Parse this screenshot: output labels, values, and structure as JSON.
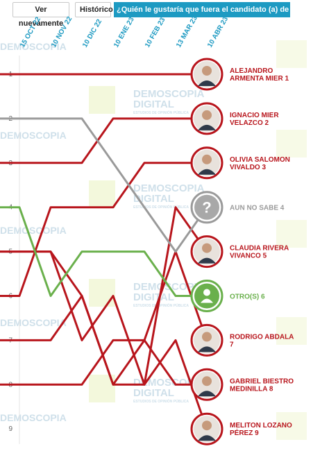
{
  "toolbar": {
    "again_label": "Ver nuevamente",
    "history_label": "Histórico",
    "question": "¿Quién le gustaría que fuera el candidato (a) de MORENA?"
  },
  "watermark": {
    "brand": "DEMOSCOPIA",
    "brand2": "DIGITAL",
    "tagline": "ESTUDIOS DE OPINIÓN PÚBLICA"
  },
  "chart_data": {
    "type": "line",
    "subtype": "bump",
    "dates": [
      "15 OCT 22",
      "10 NOV 22",
      "10 DIC 22",
      "10 ENE 23",
      "10 FEB 23",
      "13 MAR 23",
      "10 ABR 23"
    ],
    "ranks": [
      1,
      2,
      3,
      4,
      5,
      6,
      7,
      8,
      9
    ],
    "y_inverted": true,
    "grid": false,
    "colors": {
      "candidate": "#b8151c",
      "undecided": "#9a9a9a",
      "other": "#6ab04c"
    },
    "series": [
      {
        "name": "ALEJANDRO ARMENTA MIER 1",
        "line1": "ALEJANDRO",
        "line2": "ARMENTA MIER 1",
        "kind": "candidate",
        "ranks": [
          1,
          1,
          1,
          1,
          1,
          1,
          1
        ]
      },
      {
        "name": "IGNACIO MIER VELAZCO 2",
        "line1": "IGNACIO MIER",
        "line2": "VELAZCO 2",
        "kind": "candidate",
        "ranks": [
          3,
          3,
          3,
          2,
          2,
          2,
          2
        ]
      },
      {
        "name": "OLIVIA SALOMON VIVALDO 3",
        "line1": "OLIVIA SALOMON",
        "line2": "VIVALDO 3",
        "kind": "candidate",
        "ranks": [
          6,
          4,
          4,
          4,
          3,
          3,
          3
        ]
      },
      {
        "name": "AUN NO SABE 4",
        "line1": "AUN NO SABE 4",
        "line2": "",
        "kind": "undecided",
        "ranks": [
          2,
          2,
          2,
          3,
          4,
          5,
          4
        ]
      },
      {
        "name": "CLAUDIA RIVERA VIVANCO 5",
        "line1": "CLAUDIA RIVERA",
        "line2": "VIVANCO 5",
        "kind": "candidate",
        "ranks": [
          5,
          5,
          7,
          6,
          8,
          4,
          5
        ]
      },
      {
        "name": "OTRO(S) 6",
        "line1": "OTRO(S) 6",
        "line2": "",
        "kind": "other",
        "ranks": [
          4,
          6,
          5,
          5,
          5,
          6,
          6
        ]
      },
      {
        "name": "RODRIGO ABDALA 7",
        "line1": "RODRIGO ABDALA",
        "line2": "7",
        "kind": "candidate",
        "ranks": [
          7,
          7,
          6,
          8,
          7,
          5,
          7
        ]
      },
      {
        "name": "GABRIEL BIESTRO MEDINILLA 8",
        "line1": "GABRIEL BIESTRO",
        "line2": "MEDINILLA 8",
        "kind": "candidate",
        "ranks": [
          8,
          8,
          8,
          7,
          7,
          8,
          8
        ]
      },
      {
        "name": "MELITON LOZANO PÉREZ 9",
        "line1": "MELITON LOZANO",
        "line2": "PÉREZ 9",
        "kind": "candidate",
        "ranks": [
          5,
          5,
          6,
          8,
          8,
          7,
          9
        ]
      }
    ]
  }
}
